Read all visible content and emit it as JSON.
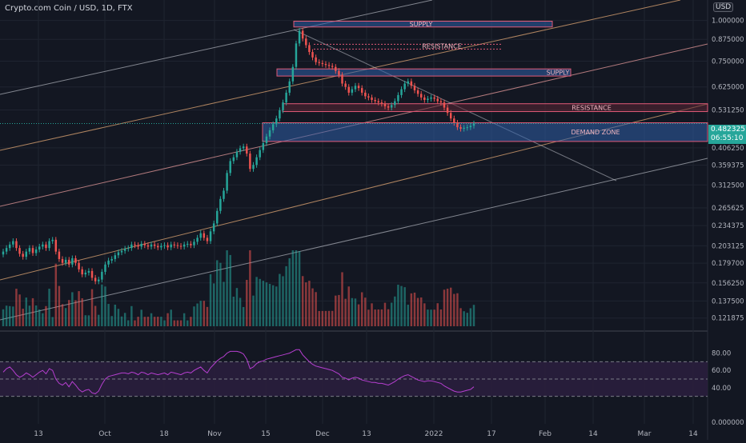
{
  "header": {
    "symbol_line": "Crypto.com Coin / USD, 1D, FTX",
    "currency": "USD"
  },
  "price_tag": {
    "value": "0.482325",
    "countdown": "06:55:10"
  },
  "colors": {
    "background": "#131722",
    "up": "#26a69a",
    "down": "#ef5350",
    "grid": "#1f2430",
    "rsi_line": "#b53fcf",
    "rsi_band": "#2a1e3d",
    "zone_fill": "#2f5fa8",
    "zone_border": "#e05a77"
  },
  "chart_data": [
    {
      "type": "candlestick",
      "axis_ticks_y": [
        "1.000000",
        "0.875000",
        "0.750000",
        "0.625000",
        "0.531250",
        "0.406250",
        "0.359375",
        "0.312500",
        "0.265625",
        "0.234375",
        "0.203125",
        "0.179700",
        "0.156250",
        "0.137500",
        "0.121875"
      ],
      "axis_ticks_x": [
        "13",
        "Oct",
        "18",
        "Nov",
        "15",
        "Dec",
        "13",
        "2022",
        "17",
        "Feb",
        "14",
        "Mar",
        "14"
      ],
      "ylim": [
        0.115,
        1.13
      ],
      "log_scale": true,
      "grid": true,
      "last_price": 0.482325,
      "zones": [
        {
          "label": "SUPPLY",
          "low": 0.955,
          "high": 0.995
        },
        {
          "label": "RESISTANCE",
          "low": 0.845,
          "high": 0.845
        },
        {
          "label": "SUPPLY",
          "low": 0.675,
          "high": 0.71
        },
        {
          "label": "RESISTANCE",
          "low": 0.525,
          "high": 0.555
        },
        {
          "label": "DEMAND ZONE",
          "low": 0.425,
          "high": 0.485
        }
      ],
      "closes": [
        0.195,
        0.2,
        0.205,
        0.21,
        0.2,
        0.192,
        0.188,
        0.195,
        0.2,
        0.193,
        0.198,
        0.202,
        0.205,
        0.2,
        0.21,
        0.212,
        0.195,
        0.185,
        0.18,
        0.184,
        0.178,
        0.186,
        0.18,
        0.172,
        0.166,
        0.168,
        0.17,
        0.162,
        0.158,
        0.16,
        0.169,
        0.178,
        0.183,
        0.185,
        0.19,
        0.194,
        0.196,
        0.199,
        0.2,
        0.205,
        0.204,
        0.202,
        0.206,
        0.204,
        0.202,
        0.205,
        0.203,
        0.201,
        0.203,
        0.204,
        0.201,
        0.205,
        0.204,
        0.203,
        0.202,
        0.205,
        0.206,
        0.204,
        0.209,
        0.215,
        0.222,
        0.215,
        0.21,
        0.225,
        0.238,
        0.26,
        0.283,
        0.3,
        0.34,
        0.37,
        0.38,
        0.395,
        0.405,
        0.41,
        0.39,
        0.35,
        0.36,
        0.38,
        0.4,
        0.42,
        0.44,
        0.46,
        0.48,
        0.5,
        0.53,
        0.56,
        0.6,
        0.65,
        0.72,
        0.85,
        0.93,
        0.88,
        0.84,
        0.8,
        0.77,
        0.745,
        0.74,
        0.735,
        0.73,
        0.725,
        0.72,
        0.7,
        0.68,
        0.64,
        0.625,
        0.6,
        0.615,
        0.63,
        0.62,
        0.6,
        0.585,
        0.58,
        0.57,
        0.565,
        0.56,
        0.555,
        0.545,
        0.54,
        0.55,
        0.565,
        0.59,
        0.615,
        0.64,
        0.65,
        0.63,
        0.61,
        0.595,
        0.58,
        0.57,
        0.575,
        0.58,
        0.575,
        0.565,
        0.56,
        0.54,
        0.52,
        0.5,
        0.485,
        0.47,
        0.465,
        0.468,
        0.47,
        0.475,
        0.482325
      ],
      "volume_note": "volume histogram below candles",
      "series": [
        {
          "name": "",
          "values": []
        }
      ]
    },
    {
      "type": "line",
      "indicator": "RSI",
      "axis_ticks_y": [
        "80.00",
        "60.00",
        "40.00",
        "0.000000"
      ],
      "ylim": [
        0,
        100
      ],
      "bands": [
        70,
        50,
        30
      ],
      "values": [
        58,
        62,
        64,
        60,
        55,
        52,
        54,
        57,
        55,
        52,
        55,
        58,
        60,
        56,
        62,
        60,
        50,
        45,
        43,
        46,
        41,
        47,
        43,
        38,
        35,
        37,
        38,
        34,
        33,
        36,
        44,
        50,
        53,
        54,
        55,
        56,
        57,
        57,
        56,
        58,
        57,
        55,
        58,
        57,
        55,
        57,
        56,
        55,
        56,
        57,
        55,
        58,
        57,
        56,
        55,
        57,
        58,
        57,
        60,
        62,
        64,
        60,
        57,
        63,
        67,
        71,
        74,
        76,
        80,
        82,
        82,
        82,
        81,
        79,
        73,
        62,
        64,
        68,
        70,
        71,
        73,
        74,
        75,
        76,
        77,
        78,
        79,
        80,
        82,
        84,
        84,
        78,
        74,
        70,
        67,
        65,
        64,
        63,
        62,
        61,
        60,
        58,
        56,
        52,
        51,
        49,
        51,
        52,
        51,
        49,
        48,
        47,
        46,
        46,
        45,
        45,
        44,
        43,
        45,
        47,
        50,
        52,
        54,
        55,
        53,
        51,
        49,
        48,
        47,
        48,
        48,
        47,
        46,
        45,
        42,
        40,
        38,
        36,
        35,
        35,
        36,
        37,
        38,
        41
      ]
    }
  ]
}
